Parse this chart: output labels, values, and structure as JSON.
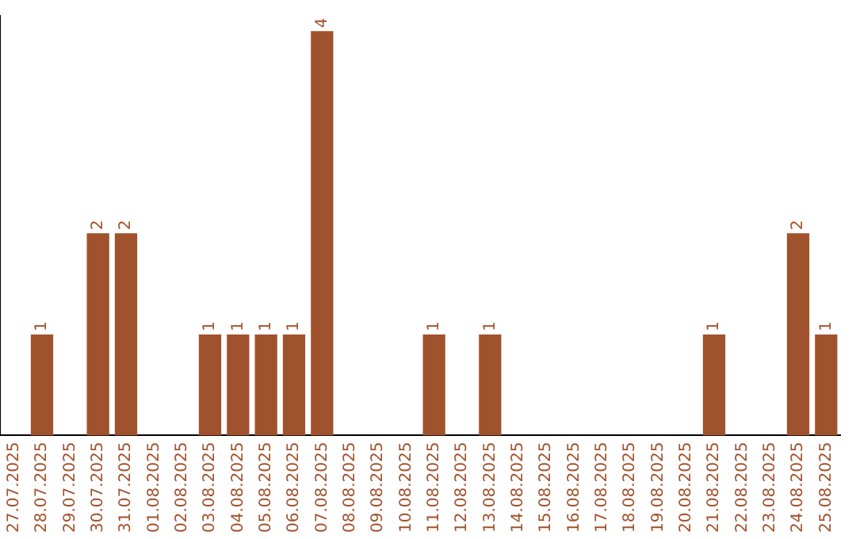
{
  "chart_data": {
    "type": "bar",
    "categories": [
      "27.07.2025",
      "28.07.2025",
      "29.07.2025",
      "30.07.2025",
      "31.07.2025",
      "01.08.2025",
      "02.08.2025",
      "03.08.2025",
      "04.08.2025",
      "05.08.2025",
      "06.08.2025",
      "07.08.2025",
      "08.08.2025",
      "09.08.2025",
      "10.08.2025",
      "11.08.2025",
      "12.08.2025",
      "13.08.2025",
      "14.08.2025",
      "15.08.2025",
      "16.08.2025",
      "17.08.2025",
      "18.08.2025",
      "19.08.2025",
      "20.08.2025",
      "21.08.2025",
      "22.08.2025",
      "23.08.2025",
      "24.08.2025",
      "25.08.2025"
    ],
    "values": [
      0,
      1,
      0,
      2,
      2,
      0,
      0,
      1,
      1,
      1,
      1,
      4,
      0,
      0,
      0,
      1,
      0,
      1,
      0,
      0,
      0,
      0,
      0,
      0,
      0,
      1,
      0,
      0,
      2,
      1
    ],
    "value_labels": [
      null,
      "1",
      null,
      "2",
      "2",
      null,
      null,
      "1",
      "1",
      "1",
      "1",
      "4",
      null,
      null,
      null,
      "1",
      null,
      "1",
      null,
      null,
      null,
      null,
      null,
      null,
      null,
      "1",
      null,
      null,
      "2",
      "1"
    ],
    "color": "#a0522d",
    "ylim": [
      0,
      4.15
    ],
    "tick_labels": "x",
    "grid": false,
    "legend": false
  }
}
